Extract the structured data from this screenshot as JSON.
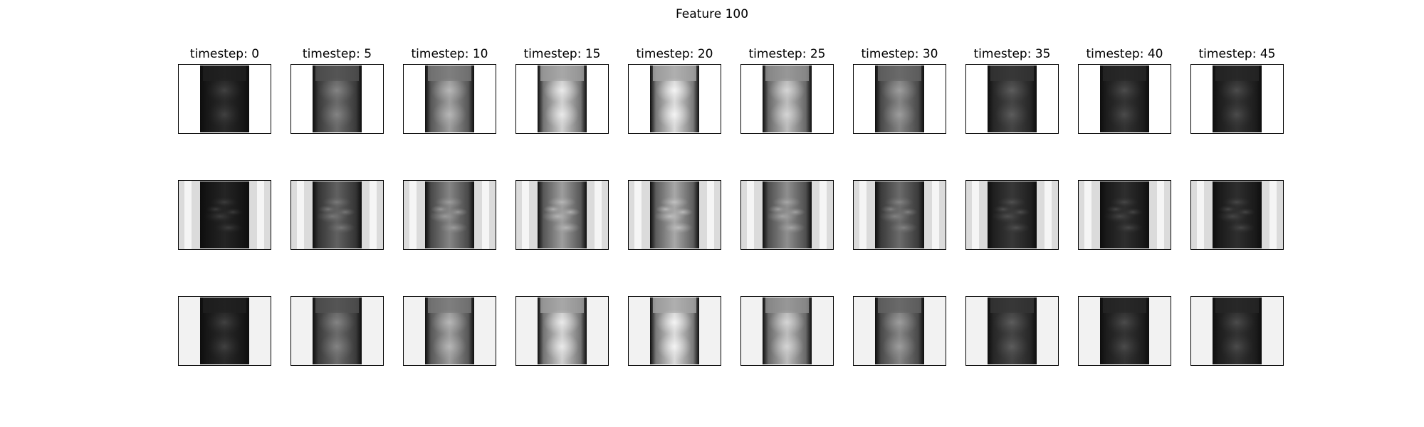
{
  "figure": {
    "title": "Feature 100",
    "column_titles": [
      "timestep: 0",
      "timestep: 5",
      "timestep: 10",
      "timestep: 15",
      "timestep: 20",
      "timestep: 25",
      "timestep: 30",
      "timestep: 35",
      "timestep: 40",
      "timestep: 45"
    ],
    "rows": 3,
    "colormap": "gray"
  },
  "panel_brightness": {
    "row_1": [
      0.16,
      0.42,
      0.62,
      0.82,
      0.86,
      0.74,
      0.52,
      0.27,
      0.2,
      0.2
    ],
    "row_2": [
      0.14,
      0.38,
      0.52,
      0.62,
      0.66,
      0.56,
      0.42,
      0.22,
      0.18,
      0.18
    ],
    "row_3": [
      0.16,
      0.42,
      0.62,
      0.82,
      0.86,
      0.74,
      0.52,
      0.27,
      0.2,
      0.2
    ]
  },
  "background_gray": {
    "row_1": 1.0,
    "row_2": 0.86,
    "row_3": 0.95
  }
}
